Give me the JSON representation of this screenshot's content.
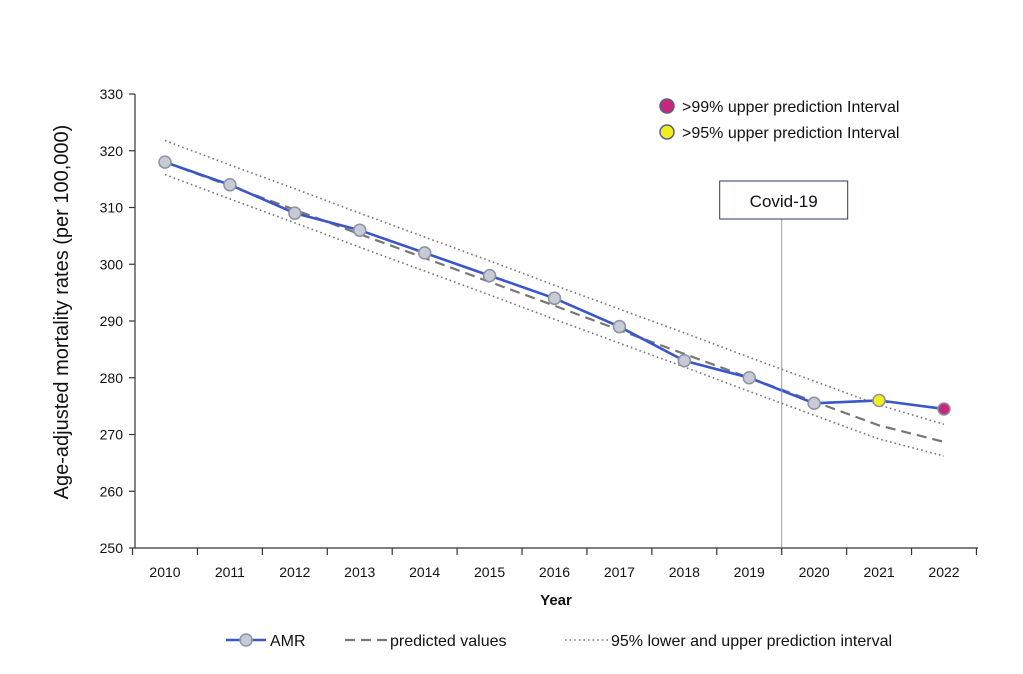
{
  "chart_data": {
    "type": "line",
    "xlabel": "Year",
    "ylabel": "Age-adjusted mortality rates (per 100,000)",
    "ylim": [
      250,
      330
    ],
    "yticks": [
      250,
      260,
      270,
      280,
      290,
      300,
      310,
      320,
      330
    ],
    "x": [
      2010,
      2011,
      2012,
      2013,
      2014,
      2015,
      2016,
      2017,
      2018,
      2019,
      2020,
      2021,
      2022
    ],
    "series": [
      {
        "name": "AMR",
        "style": "solid-markers",
        "color": "#3a56c8",
        "values": [
          318,
          314,
          309,
          306,
          302,
          298,
          294,
          289,
          283,
          280,
          275.5,
          276,
          274.5
        ]
      },
      {
        "name": "predicted values",
        "style": "dashed",
        "color": "#777777",
        "values": [
          318,
          313.8,
          309.6,
          305.3,
          301.1,
          296.9,
          292.7,
          288.4,
          284.2,
          280,
          275.8,
          271.6,
          268.7
        ]
      },
      {
        "name": "95% lower and upper prediction interval",
        "style": "dotted",
        "color": "#777777",
        "lower": [
          315.8,
          311.5,
          307.3,
          303,
          298.8,
          294.6,
          290.3,
          286.1,
          281.9,
          277.6,
          273.4,
          269.2,
          266.2
        ],
        "upper": [
          321.8,
          317.5,
          313.3,
          309,
          304.8,
          300.6,
          296.3,
          292.1,
          287.9,
          283.6,
          279.4,
          275.2,
          271.8
        ]
      }
    ],
    "highlights": [
      {
        "x": 2021,
        "value": 276,
        "color": "#f2ee1e",
        "category": "gt95"
      },
      {
        "x": 2022,
        "value": 274.5,
        "color": "#c8287a",
        "category": "gt99"
      }
    ],
    "top_legend": [
      {
        "label": ">99% upper prediction Interval",
        "color": "#c8287a"
      },
      {
        "label": ">95% upper prediction Interval",
        "color": "#f2ee1e"
      }
    ],
    "annotation": {
      "label": "Covid-19",
      "x": 2019.5
    },
    "bottom_legend": [
      "AMR",
      "predicted values",
      "95% lower and upper prediction interval"
    ],
    "marker_color": "#c8cbd6",
    "legend_placement": "bottom",
    "grid": false
  }
}
